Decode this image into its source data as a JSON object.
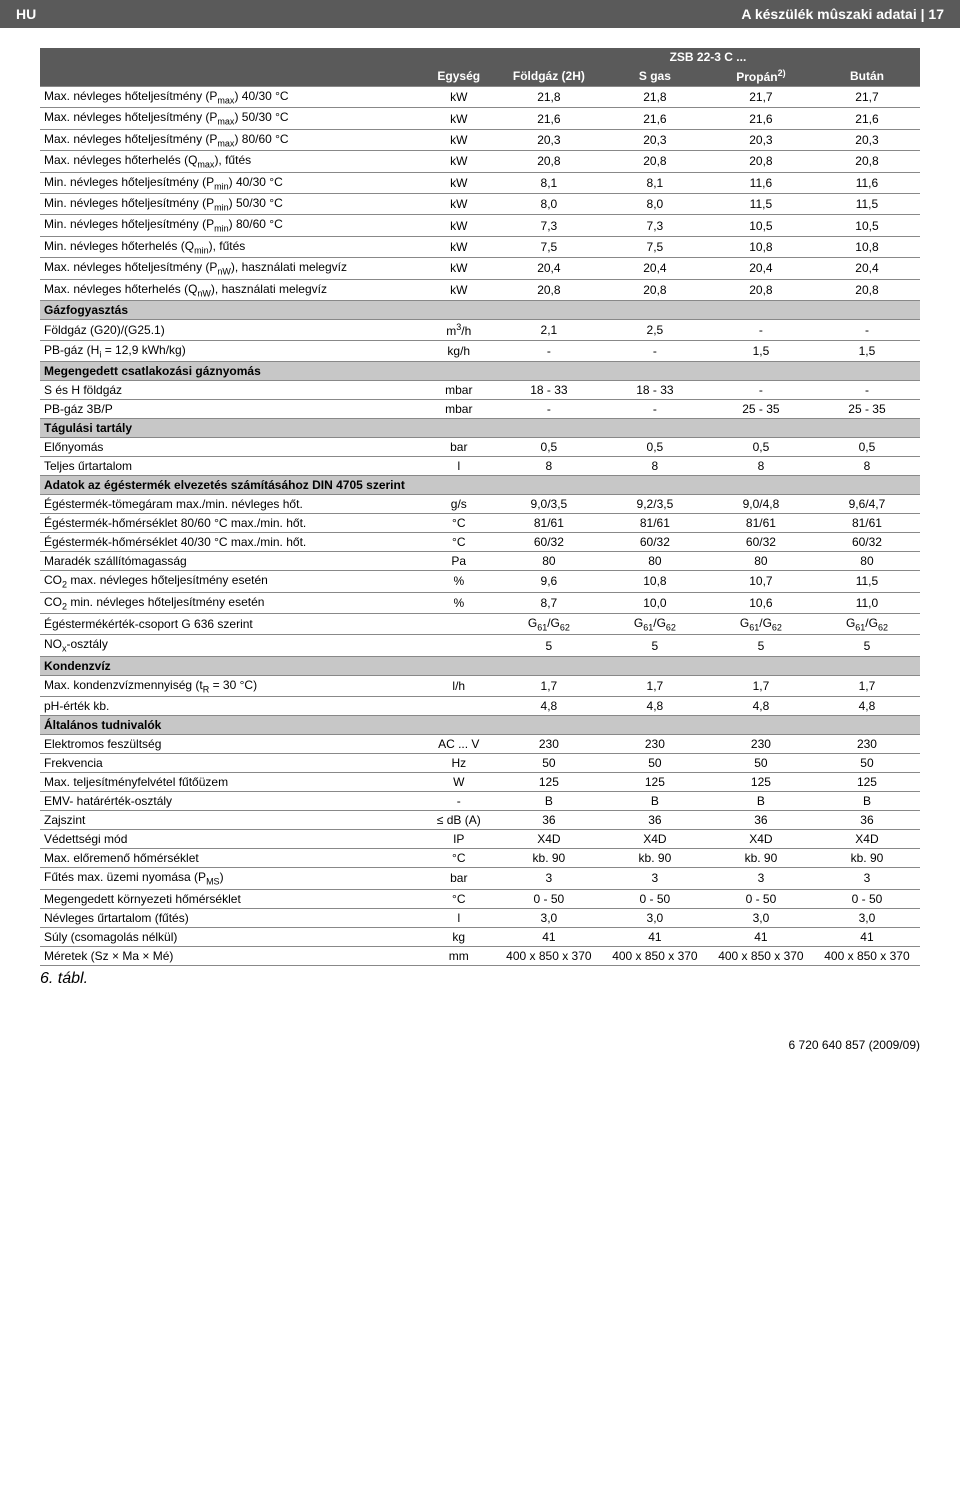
{
  "topbar": {
    "left": "HU",
    "right": "A készülék mûszaki adatai | 17"
  },
  "model_title": "ZSB 22-3 C ...",
  "columns": [
    "Egység",
    "Földgáz (2H)",
    "S gas",
    "Propán",
    "Bután"
  ],
  "propan_sup": "2)",
  "rows": [
    {
      "label": "Max. névleges hőteljesítmény (P<sub>max</sub>) 40/30 °C",
      "unit": "kW",
      "v": [
        "21,8",
        "21,8",
        "21,7",
        "21,7"
      ]
    },
    {
      "label": "Max. névleges hőteljesítmény (P<sub>max</sub>) 50/30 °C",
      "unit": "kW",
      "v": [
        "21,6",
        "21,6",
        "21,6",
        "21,6"
      ]
    },
    {
      "label": "Max. névleges hőteljesítmény (P<sub>max</sub>) 80/60 °C",
      "unit": "kW",
      "v": [
        "20,3",
        "20,3",
        "20,3",
        "20,3"
      ]
    },
    {
      "label": "Max. névleges hőterhelés (Q<sub>max</sub>), fűtés",
      "unit": "kW",
      "v": [
        "20,8",
        "20,8",
        "20,8",
        "20,8"
      ]
    },
    {
      "label": "Min. névleges hőteljesítmény (P<sub>min</sub>) 40/30 °C",
      "unit": "kW",
      "v": [
        "8,1",
        "8,1",
        "11,6",
        "11,6"
      ]
    },
    {
      "label": "Min. névleges hőteljesítmény (P<sub>min</sub>) 50/30 °C",
      "unit": "kW",
      "v": [
        "8,0",
        "8,0",
        "11,5",
        "11,5"
      ]
    },
    {
      "label": "Min. névleges hőteljesítmény (P<sub>min</sub>) 80/60 °C",
      "unit": "kW",
      "v": [
        "7,3",
        "7,3",
        "10,5",
        "10,5"
      ]
    },
    {
      "label": "Min. névleges hőterhelés (Q<sub>min</sub>), fűtés",
      "unit": "kW",
      "v": [
        "7,5",
        "7,5",
        "10,8",
        "10,8"
      ]
    },
    {
      "label": "Max. névleges hőteljesítmény (P<sub>nW</sub>), használati melegvíz",
      "unit": "kW",
      "v": [
        "20,4",
        "20,4",
        "20,4",
        "20,4"
      ]
    },
    {
      "label": "Max. névleges hőterhelés (Q<sub>nW</sub>), használati melegvíz",
      "unit": "kW",
      "v": [
        "20,8",
        "20,8",
        "20,8",
        "20,8"
      ]
    },
    {
      "section": "Gázfogyasztás"
    },
    {
      "label": "Földgáz (G20)/(G25.1)",
      "unit": "m<sup>3</sup>/h",
      "v": [
        "2,1",
        "2,5",
        "-",
        "-"
      ]
    },
    {
      "label": "PB-gáz (H<sub>i</sub> = 12,9 kWh/kg)",
      "unit": "kg/h",
      "v": [
        "-",
        "-",
        "1,5",
        "1,5"
      ]
    },
    {
      "section": "Megengedett csatlakozási gáznyomás"
    },
    {
      "label": "S és H földgáz",
      "unit": "mbar",
      "v": [
        "18 - 33",
        "18 - 33",
        "-",
        "-"
      ]
    },
    {
      "label": "PB-gáz 3B/P",
      "unit": "mbar",
      "v": [
        "-",
        "-",
        "25 - 35",
        "25 - 35"
      ]
    },
    {
      "section": "Tágulási tartály"
    },
    {
      "label": "Előnyomás",
      "unit": "bar",
      "v": [
        "0,5",
        "0,5",
        "0,5",
        "0,5"
      ]
    },
    {
      "label": "Teljes űrtartalom",
      "unit": "l",
      "v": [
        "8",
        "8",
        "8",
        "8"
      ]
    },
    {
      "section": "Adatok az égéstermék elvezetés számításához DIN 4705 szerint"
    },
    {
      "label": "Égéstermék-tömegáram max./min. névleges hőt.",
      "unit": "g/s",
      "v": [
        "9,0/3,5",
        "9,2/3,5",
        "9,0/4,8",
        "9,6/4,7"
      ]
    },
    {
      "label": "Égéstermék-hőmérséklet 80/60 °C max./min. hőt.",
      "unit": "°C",
      "v": [
        "81/61",
        "81/61",
        "81/61",
        "81/61"
      ]
    },
    {
      "label": "Égéstermék-hőmérséklet 40/30 °C max./min. hőt.",
      "unit": "°C",
      "v": [
        "60/32",
        "60/32",
        "60/32",
        "60/32"
      ]
    },
    {
      "label": "Maradék szállítómagasság",
      "unit": "Pa",
      "v": [
        "80",
        "80",
        "80",
        "80"
      ]
    },
    {
      "label": "CO<sub>2</sub> max. névleges hőteljesítmény esetén",
      "unit": "%",
      "v": [
        "9,6",
        "10,8",
        "10,7",
        "11,5"
      ]
    },
    {
      "label": "CO<sub>2</sub> min. névleges hőteljesítmény esetén",
      "unit": "%",
      "v": [
        "8,7",
        "10,0",
        "10,6",
        "11,0"
      ]
    },
    {
      "label": "Égéstermékérték-csoport G 636 szerint",
      "unit": "",
      "v": [
        "G<sub>61</sub>/G<sub>62</sub>",
        "G<sub>61</sub>/G<sub>62</sub>",
        "G<sub>61</sub>/G<sub>62</sub>",
        "G<sub>61</sub>/G<sub>62</sub>"
      ]
    },
    {
      "label": "NO<sub>x</sub>-osztály",
      "unit": "",
      "v": [
        "5",
        "5",
        "5",
        "5"
      ]
    },
    {
      "section": "Kondenzvíz"
    },
    {
      "label": "Max. kondenzvízmennyiség (t<sub>R</sub> = 30 °C)",
      "unit": "l/h",
      "v": [
        "1,7",
        "1,7",
        "1,7",
        "1,7"
      ]
    },
    {
      "label": "pH-érték kb.",
      "unit": "",
      "v": [
        "4,8",
        "4,8",
        "4,8",
        "4,8"
      ]
    },
    {
      "section": "Általános tudnivalók"
    },
    {
      "label": "Elektromos feszültség",
      "unit": "AC ... V",
      "v": [
        "230",
        "230",
        "230",
        "230"
      ]
    },
    {
      "label": "Frekvencia",
      "unit": "Hz",
      "v": [
        "50",
        "50",
        "50",
        "50"
      ]
    },
    {
      "label": "Max. teljesítményfelvétel fűtőüzem",
      "unit": "W",
      "v": [
        "125",
        "125",
        "125",
        "125"
      ]
    },
    {
      "label": "EMV- határérték-osztály",
      "unit": "-",
      "v": [
        "B",
        "B",
        "B",
        "B"
      ]
    },
    {
      "label": "Zajszint",
      "unit": "≤ dB (A)",
      "v": [
        "36",
        "36",
        "36",
        "36"
      ]
    },
    {
      "label": "Védettségi mód",
      "unit": "IP",
      "v": [
        "X4D",
        "X4D",
        "X4D",
        "X4D"
      ]
    },
    {
      "label": "Max. előremenő hőmérséklet",
      "unit": "°C",
      "v": [
        "kb. 90",
        "kb. 90",
        "kb. 90",
        "kb. 90"
      ]
    },
    {
      "label": "Fűtés max. üzemi nyomása (P<sub>MS</sub>)",
      "unit": "bar",
      "v": [
        "3",
        "3",
        "3",
        "3"
      ]
    },
    {
      "label": "Megengedett környezeti hőmérséklet",
      "unit": "°C",
      "v": [
        "0 - 50",
        "0 - 50",
        "0 - 50",
        "0 - 50"
      ]
    },
    {
      "label": "Névleges űrtartalom (fűtés)",
      "unit": "l",
      "v": [
        "3,0",
        "3,0",
        "3,0",
        "3,0"
      ]
    },
    {
      "label": "Súly (csomagolás nélkül)",
      "unit": "kg",
      "v": [
        "41",
        "41",
        "41",
        "41"
      ]
    },
    {
      "label": "Méretek (Sz × Ma × Mé)",
      "unit": "mm",
      "v": [
        "400 x 850 x 370",
        "400 x 850 x 370",
        "400 x 850 x 370",
        "400 x 850 x 370"
      ]
    }
  ],
  "caption": "6. tábl.",
  "footer": "6 720 640 857 (2009/09)"
}
